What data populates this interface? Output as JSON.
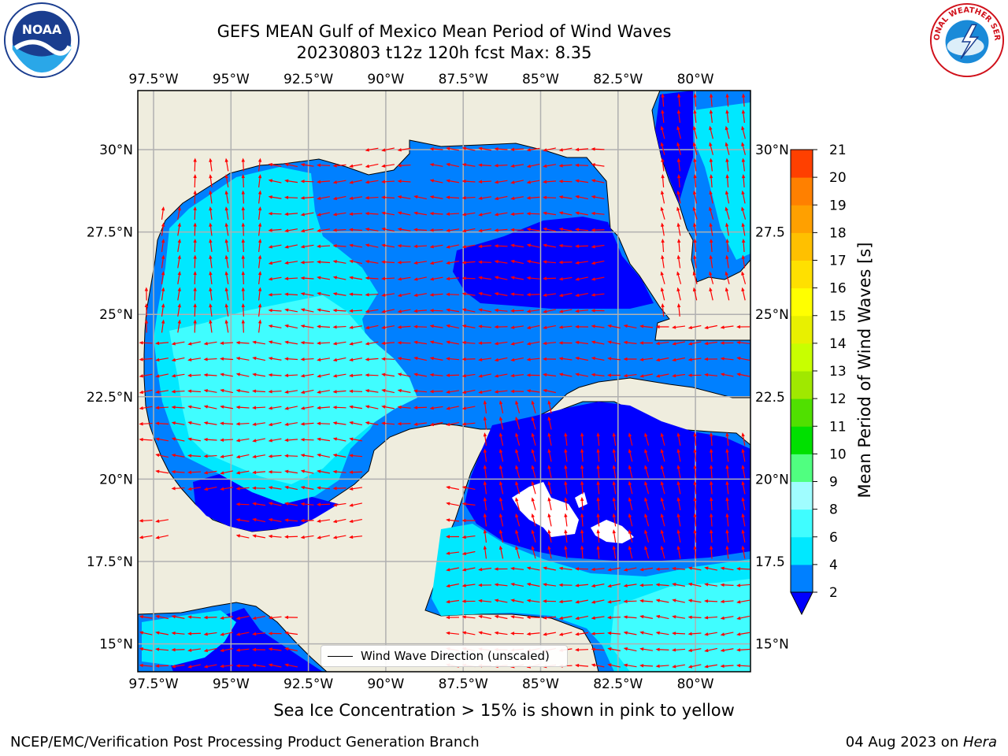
{
  "header": {
    "title_line1": "GEFS MEAN Gulf of Mexico Mean Period of Wind Waves",
    "title_line2": "20230803 t12z 120h fcst   Max: 8.35"
  },
  "logos": {
    "noaa": "NOAA",
    "nws": "NATIONAL WEATHER SERVICE"
  },
  "map": {
    "lon_labels": [
      "97.5°W",
      "95°W",
      "92.5°W",
      "90°W",
      "87.5°W",
      "85°W",
      "82.5°W",
      "80°W"
    ],
    "lat_labels_left": [
      "30°N",
      "27.5°N",
      "25°N",
      "22.5°N",
      "20°N",
      "17.5°N",
      "15°N"
    ],
    "lat_labels_right": [
      "30°N",
      "27.5",
      "25°N",
      "22.5",
      "20°N",
      "17.5",
      "15°N"
    ],
    "legend_label": "Wind Wave Direction (unscaled)",
    "land_color": "#efedde",
    "arrow_color": "#ff0000"
  },
  "colorbar": {
    "label": "Mean Period of Wind Waves [s]",
    "ticks": [
      "2",
      "4",
      "6",
      "8",
      "9",
      "10",
      "11",
      "12",
      "13",
      "14",
      "15",
      "16",
      "17",
      "18",
      "19",
      "20",
      "21"
    ],
    "colors": [
      "#0080ff",
      "#00e8ff",
      "#40fdff",
      "#a0fdff",
      "#50ff80",
      "#00e000",
      "#50e000",
      "#a0e800",
      "#c8ff00",
      "#e8f000",
      "#ffff00",
      "#ffe000",
      "#ffc000",
      "#ffa000",
      "#ff8000",
      "#ff4000",
      "#ff0000"
    ],
    "under_color": "#0000ff"
  },
  "captions": {
    "ice_note": "Sea Ice Concentration > 15% is shown in pink to yellow"
  },
  "footer": {
    "left": "NCEP/EMC/Verification Post Processing Product Generation Branch",
    "right_date": "04 Aug 2023 on ",
    "right_host": "Hera"
  }
}
